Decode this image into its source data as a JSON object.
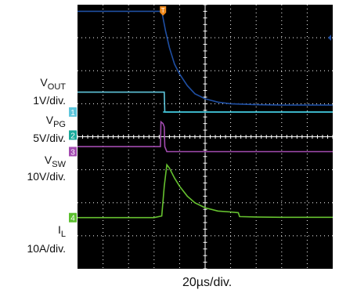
{
  "channels": [
    {
      "id": "1",
      "name_main": "V",
      "name_sub": "OUT",
      "scale": "1V/div.",
      "color": "#5ec6dc"
    },
    {
      "id": "2",
      "name_main": "V",
      "name_sub": "PG",
      "scale": "5V/div.",
      "color": "#1aa99a"
    },
    {
      "id": "3",
      "name_main": "V",
      "name_sub": "SW",
      "scale": "10V/div.",
      "color": "#a34bb0"
    },
    {
      "id": "4",
      "name_main": "I",
      "name_sub": "L",
      "scale": "10A/div.",
      "color": "#5bbf2e"
    }
  ],
  "trigger_label": "T",
  "time_base": "20µs/div.",
  "colors": {
    "screen_bg": "#000000",
    "grid": "#ffffff",
    "vout_trace": "#5ec6dc",
    "upper_trace": "#1f4fa3",
    "pg_trace": "#3dc3d6",
    "sw_trace": "#a34bb0",
    "il_trace": "#66c22f",
    "trigger": "#f08a1c"
  },
  "chart_data": {
    "type": "line",
    "xlabel": "",
    "ylabel": "",
    "x_divisions": 10,
    "y_divisions": 8,
    "x_range_div": [
      0,
      10
    ],
    "y_range_div": [
      0,
      8
    ],
    "grid": true,
    "series": [
      {
        "name": "",
        "color": "#1f4fa3",
        "points": [
          [
            0,
            7.8
          ],
          [
            1.0,
            7.8
          ],
          [
            2.0,
            7.8
          ],
          [
            3.0,
            7.8
          ],
          [
            3.3,
            7.8
          ],
          [
            3.45,
            7.2
          ],
          [
            3.6,
            6.7
          ],
          [
            3.8,
            6.2
          ],
          [
            4.0,
            5.9
          ],
          [
            4.3,
            5.55
          ],
          [
            4.6,
            5.3
          ],
          [
            5.0,
            5.15
          ],
          [
            5.5,
            5.05
          ],
          [
            6.0,
            5.0
          ],
          [
            7.0,
            4.97
          ],
          [
            8.0,
            4.96
          ],
          [
            9.0,
            4.96
          ],
          [
            10.0,
            4.96
          ]
        ]
      },
      {
        "name": "V_OUT",
        "color": "#5ec6dc",
        "points": [
          [
            0,
            5.35
          ],
          [
            1.0,
            5.35
          ],
          [
            2.0,
            5.35
          ],
          [
            3.0,
            5.35
          ],
          [
            3.4,
            5.35
          ],
          [
            3.42,
            4.75
          ],
          [
            4.0,
            4.75
          ],
          [
            6.0,
            4.75
          ],
          [
            8.0,
            4.75
          ],
          [
            10.0,
            4.75
          ]
        ]
      },
      {
        "name": "V_PG",
        "color": "#3dc3d6",
        "points": [
          [
            3.35,
            4.75
          ],
          [
            10.0,
            4.75
          ]
        ]
      },
      {
        "name": "V_SW",
        "color": "#a34bb0",
        "points": [
          [
            0,
            3.7
          ],
          [
            1.0,
            3.7
          ],
          [
            2.0,
            3.7
          ],
          [
            3.0,
            3.7
          ],
          [
            3.25,
            3.7
          ],
          [
            3.27,
            4.45
          ],
          [
            3.35,
            4.4
          ],
          [
            3.4,
            4.3
          ],
          [
            3.42,
            3.7
          ],
          [
            3.5,
            3.55
          ],
          [
            4.0,
            3.55
          ],
          [
            6.0,
            3.55
          ],
          [
            8.0,
            3.55
          ],
          [
            10.0,
            3.55
          ]
        ]
      },
      {
        "name": "I_L",
        "color": "#66c22f",
        "points": [
          [
            0,
            1.55
          ],
          [
            1.0,
            1.55
          ],
          [
            2.0,
            1.55
          ],
          [
            3.0,
            1.55
          ],
          [
            3.3,
            1.6
          ],
          [
            3.4,
            2.5
          ],
          [
            3.5,
            3.15
          ],
          [
            3.6,
            3.05
          ],
          [
            3.8,
            2.75
          ],
          [
            4.0,
            2.5
          ],
          [
            4.3,
            2.2
          ],
          [
            4.6,
            2.0
          ],
          [
            5.0,
            1.85
          ],
          [
            5.5,
            1.75
          ],
          [
            6.0,
            1.72
          ],
          [
            6.3,
            1.7
          ],
          [
            6.35,
            1.58
          ],
          [
            7.0,
            1.57
          ],
          [
            8.0,
            1.56
          ],
          [
            9.0,
            1.56
          ],
          [
            10.0,
            1.56
          ]
        ]
      }
    ]
  }
}
